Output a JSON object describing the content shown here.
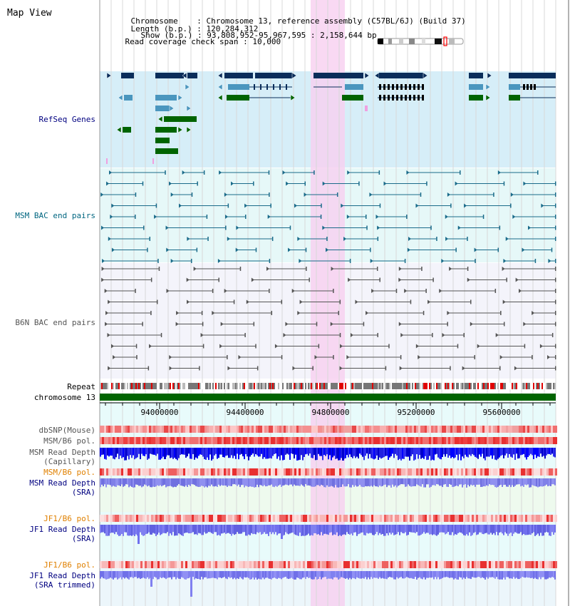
{
  "page": {
    "title": "Map View"
  },
  "header": {
    "chromosome_label": "Chromosome",
    "chromosome_value": "Chromosome 13, reference assembly (C57BL/6J) (Build 37)",
    "length_label": "Length (b.p.)",
    "length_value": "120,284,312",
    "show_label": "Show (b.p.)",
    "show_value": "93,808,952-95,967,595 : 2,158,644 bp",
    "coverage_label": "Read coverage check span",
    "coverage_value": "10,000"
  },
  "tracks": {
    "refseq": "RefSeq Genes",
    "msm_bac": "MSM BAC end pairs",
    "b6n_bac": "B6N BAC end pairs",
    "repeat": "Repeat",
    "chromosome": "chromosome 13",
    "dbsnp": "dbSNP(Mouse)",
    "msm_b6_pol": "MSM/B6 pol.",
    "msm_depth_cap_1": "MSM Read Depth",
    "msm_depth_cap_2": "(Capillary)",
    "msm_b6_pol_2": "MSM/B6 pol.",
    "msm_depth_sra_1": "MSM Read Depth",
    "msm_depth_sra_2": "(SRA)",
    "jf1_b6_pol": "JF1/B6 pol.",
    "jf1_depth_sra_1": "JF1 Read Depth",
    "jf1_depth_sra_2": "(SRA)",
    "jf1_b6_pol_2": "JF1/B6 pol.",
    "jf1_depth_trim_1": "JF1 Read Depth",
    "jf1_depth_trim_2": "(SRA trimmed)"
  },
  "ruler": {
    "ticks": [
      "94000000",
      "94400000",
      "94800000",
      "95200000",
      "95600000"
    ]
  },
  "colors": {
    "refseq_bg": "#d6eef8",
    "msm_bg": "#e6f8f8",
    "b6n_bg": "#f4f4fb",
    "highlight": "#f8d0f0",
    "gene_dark": "#0a2d5a",
    "gene_mid": "#4a96be",
    "gene_green": "#006400",
    "msm_line": "#1a6b8a",
    "b6n_line": "#555555",
    "label_blue": "#000080",
    "label_teal": "#006680",
    "label_orange": "#e08000"
  }
}
